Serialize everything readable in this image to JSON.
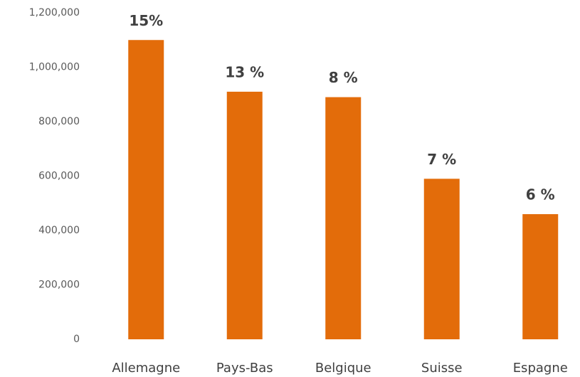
{
  "chart_data": {
    "type": "bar",
    "categories": [
      "Allemagne",
      "Pays-Bas",
      "Belgique",
      "Suisse",
      "Espagne"
    ],
    "values": [
      1100000,
      910000,
      890000,
      590000,
      460000
    ],
    "annotations": [
      "15%",
      "13 %",
      "8 %",
      "7 %",
      "6 %"
    ],
    "color": "#e36c0a",
    "ylim": [
      0,
      1200000
    ],
    "yticks": [
      0,
      {
        "value": 200000,
        "label": "200,000"
      },
      {
        "value": 400000,
        "label": "400,000"
      },
      {
        "value": 600000,
        "label": "600,000"
      },
      {
        "value": 800000,
        "label": "800,000"
      },
      {
        "value": 1000000,
        "label": "1,000,000"
      },
      {
        "value": 1200000,
        "label": "1,200,000"
      }
    ],
    "grid": false
  }
}
